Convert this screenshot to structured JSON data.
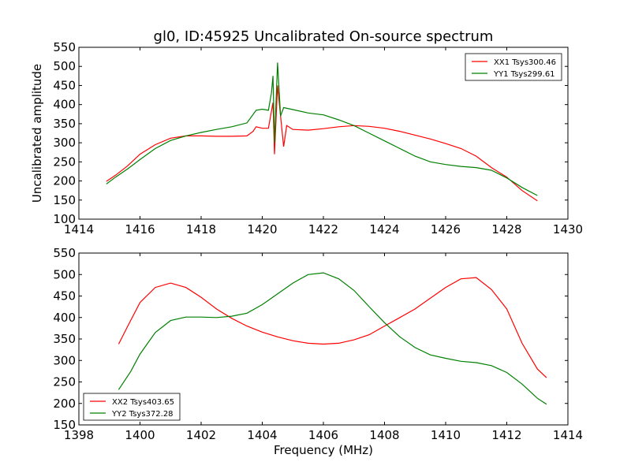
{
  "figure": {
    "title": "gl0, ID:45925 Uncalibrated On-source spectrum",
    "xlabel": "Frequency (MHz)"
  },
  "chart_data": [
    {
      "type": "line",
      "title": "gl0, ID:45925 Uncalibrated On-source spectrum",
      "xlabel": "",
      "ylabel": "Uncalibrated amplitude",
      "xlim": [
        1414,
        1430
      ],
      "ylim": [
        100,
        550
      ],
      "xticks": [
        1414,
        1416,
        1418,
        1420,
        1422,
        1424,
        1426,
        1428,
        1430
      ],
      "yticks": [
        100,
        150,
        200,
        250,
        300,
        350,
        400,
        450,
        500,
        550
      ],
      "grid": false,
      "legend": "top-right",
      "series": [
        {
          "name": "XX1 Tsys300.46",
          "color": "#ff0000",
          "points": [
            [
              1414.9,
              199
            ],
            [
              1415.2,
              215
            ],
            [
              1415.6,
              240
            ],
            [
              1416.0,
              270
            ],
            [
              1416.5,
              295
            ],
            [
              1417.0,
              312
            ],
            [
              1417.5,
              318
            ],
            [
              1418.0,
              318
            ],
            [
              1418.5,
              317
            ],
            [
              1419.0,
              317
            ],
            [
              1419.5,
              318
            ],
            [
              1419.7,
              330
            ],
            [
              1419.8,
              342
            ],
            [
              1420.0,
              338
            ],
            [
              1420.2,
              338
            ],
            [
              1420.35,
              405
            ],
            [
              1420.4,
              270
            ],
            [
              1420.5,
              450
            ],
            [
              1420.6,
              370
            ],
            [
              1420.7,
              290
            ],
            [
              1420.8,
              345
            ],
            [
              1421.0,
              335
            ],
            [
              1421.5,
              333
            ],
            [
              1422.0,
              337
            ],
            [
              1422.5,
              342
            ],
            [
              1423.0,
              345
            ],
            [
              1423.5,
              343
            ],
            [
              1424.0,
              338
            ],
            [
              1424.5,
              330
            ],
            [
              1425.0,
              320
            ],
            [
              1425.5,
              310
            ],
            [
              1426.0,
              298
            ],
            [
              1426.5,
              285
            ],
            [
              1427.0,
              265
            ],
            [
              1427.5,
              235
            ],
            [
              1428.0,
              210
            ],
            [
              1428.5,
              175
            ],
            [
              1429.0,
              148
            ]
          ]
        },
        {
          "name": "YY1 Tsys299.61",
          "color": "#008000",
          "points": [
            [
              1414.9,
              192
            ],
            [
              1415.2,
              210
            ],
            [
              1415.6,
              232
            ],
            [
              1416.0,
              256
            ],
            [
              1416.5,
              285
            ],
            [
              1417.0,
              306
            ],
            [
              1417.5,
              318
            ],
            [
              1418.0,
              327
            ],
            [
              1418.5,
              335
            ],
            [
              1419.0,
              342
            ],
            [
              1419.5,
              352
            ],
            [
              1419.8,
              385
            ],
            [
              1420.0,
              388
            ],
            [
              1420.2,
              385
            ],
            [
              1420.3,
              430
            ],
            [
              1420.35,
              475
            ],
            [
              1420.4,
              300
            ],
            [
              1420.5,
              510
            ],
            [
              1420.6,
              370
            ],
            [
              1420.7,
              392
            ],
            [
              1421.0,
              387
            ],
            [
              1421.5,
              378
            ],
            [
              1422.0,
              373
            ],
            [
              1422.5,
              360
            ],
            [
              1423.0,
              345
            ],
            [
              1423.5,
              325
            ],
            [
              1424.0,
              305
            ],
            [
              1424.5,
              285
            ],
            [
              1425.0,
              265
            ],
            [
              1425.5,
              250
            ],
            [
              1426.0,
              243
            ],
            [
              1426.5,
              238
            ],
            [
              1427.0,
              235
            ],
            [
              1427.5,
              228
            ],
            [
              1428.0,
              208
            ],
            [
              1428.5,
              183
            ],
            [
              1429.0,
              162
            ]
          ]
        }
      ]
    },
    {
      "type": "line",
      "title": "",
      "xlabel": "Frequency (MHz)",
      "ylabel": "",
      "xlim": [
        1398,
        1414
      ],
      "ylim": [
        150,
        550
      ],
      "xticks": [
        1398,
        1400,
        1402,
        1404,
        1406,
        1408,
        1410,
        1412,
        1414
      ],
      "yticks": [
        150,
        200,
        250,
        300,
        350,
        400,
        450,
        500,
        550
      ],
      "grid": false,
      "legend": "bottom-left",
      "series": [
        {
          "name": "XX2 Tsys403.65",
          "color": "#ff0000",
          "points": [
            [
              1399.3,
              338
            ],
            [
              1399.6,
              380
            ],
            [
              1400.0,
              435
            ],
            [
              1400.5,
              470
            ],
            [
              1401.0,
              480
            ],
            [
              1401.5,
              470
            ],
            [
              1402.0,
              447
            ],
            [
              1402.5,
              420
            ],
            [
              1403.0,
              398
            ],
            [
              1403.5,
              380
            ],
            [
              1404.0,
              366
            ],
            [
              1404.5,
              355
            ],
            [
              1405.0,
              346
            ],
            [
              1405.5,
              340
            ],
            [
              1406.0,
              338
            ],
            [
              1406.5,
              340
            ],
            [
              1407.0,
              348
            ],
            [
              1407.5,
              360
            ],
            [
              1408.0,
              380
            ],
            [
              1408.5,
              400
            ],
            [
              1409.0,
              420
            ],
            [
              1409.5,
              445
            ],
            [
              1410.0,
              470
            ],
            [
              1410.5,
              490
            ],
            [
              1411.0,
              493
            ],
            [
              1411.5,
              465
            ],
            [
              1412.0,
              420
            ],
            [
              1412.5,
              340
            ],
            [
              1413.0,
              280
            ],
            [
              1413.3,
              260
            ]
          ]
        },
        {
          "name": "YY2 Tsys372.28",
          "color": "#008000",
          "points": [
            [
              1399.3,
              232
            ],
            [
              1399.7,
              275
            ],
            [
              1400.0,
              315
            ],
            [
              1400.5,
              365
            ],
            [
              1401.0,
              393
            ],
            [
              1401.5,
              401
            ],
            [
              1402.0,
              401
            ],
            [
              1402.5,
              400
            ],
            [
              1403.0,
              403
            ],
            [
              1403.5,
              410
            ],
            [
              1404.0,
              430
            ],
            [
              1404.5,
              455
            ],
            [
              1405.0,
              480
            ],
            [
              1405.5,
              500
            ],
            [
              1406.0,
              504
            ],
            [
              1406.5,
              490
            ],
            [
              1407.0,
              463
            ],
            [
              1407.5,
              425
            ],
            [
              1408.0,
              388
            ],
            [
              1408.5,
              355
            ],
            [
              1409.0,
              330
            ],
            [
              1409.5,
              313
            ],
            [
              1410.0,
              305
            ],
            [
              1410.5,
              298
            ],
            [
              1411.0,
              295
            ],
            [
              1411.5,
              288
            ],
            [
              1412.0,
              272
            ],
            [
              1412.5,
              245
            ],
            [
              1413.0,
              212
            ],
            [
              1413.3,
              198
            ]
          ]
        }
      ]
    }
  ]
}
